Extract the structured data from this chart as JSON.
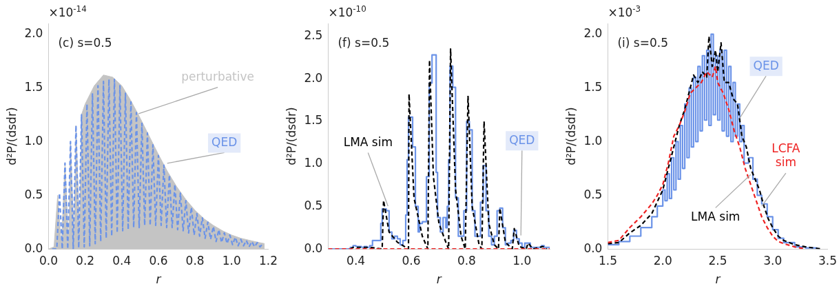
{
  "chart_data": [
    {
      "type": "line",
      "xlabel": "r",
      "ylabel": "d²P/(dsdr)",
      "xlim": [
        0,
        1.2
      ],
      "xticks": [
        {
          "value": 0,
          "label": "0.0"
        },
        {
          "value": 0.2,
          "label": "0.2"
        },
        {
          "value": 0.4,
          "label": "0.4"
        },
        {
          "value": 0.6,
          "label": "0.6"
        },
        {
          "value": 0.8,
          "label": "0.8"
        },
        {
          "value": 1,
          "label": "1.0"
        },
        {
          "value": 1.2,
          "label": "1.2"
        }
      ],
      "ylim": [
        0,
        2.1
      ],
      "yticks": [
        {
          "value": 0,
          "label": "0.0"
        },
        {
          "value": 0.5,
          "label": "0.5"
        },
        {
          "value": 1,
          "label": "1.0"
        },
        {
          "value": 1.5,
          "label": "1.5"
        },
        {
          "value": 2,
          "label": "2.0"
        }
      ],
      "marker": "none",
      "annotations": [
        "(c) s=0.5",
        "×10$^{-14}$"
      ],
      "series": [
        {
          "name": "perturbative",
          "type": "area",
          "color": "#c4c4c4",
          "line_style": "solid",
          "x": [
            0,
            0.03,
            0.05,
            0.07,
            0.09,
            0.11,
            0.12,
            0.14,
            0.15,
            0.17,
            0.18,
            0.2,
            0.25,
            0.3,
            0.35,
            0.4,
            0.45,
            0.5,
            0.55,
            0.6,
            0.65,
            0.7,
            0.75,
            0.8,
            0.85,
            0.9,
            0.95,
            1,
            1.05,
            1.1,
            1.15,
            1.18
          ],
          "values": [
            0,
            0.02,
            0.5,
            0.02,
            0.8,
            0.05,
            1,
            0.1,
            1.15,
            0.15,
            1.25,
            1.35,
            1.52,
            1.62,
            1.6,
            1.52,
            1.38,
            1.22,
            1.05,
            0.88,
            0.72,
            0.58,
            0.46,
            0.36,
            0.28,
            0.22,
            0.17,
            0.13,
            0.1,
            0.08,
            0.06,
            0.05
          ]
        },
        {
          "name": "QED",
          "type": "line",
          "color": "#6b93e8",
          "line_style": "dashed",
          "x": [
            0.02,
            0.045,
            0.06,
            0.075,
            0.09,
            0.105,
            0.12,
            0.135,
            0.15,
            0.165,
            0.18,
            0.195,
            0.21,
            0.225,
            0.24,
            0.255,
            0.27,
            0.285,
            0.3,
            0.315,
            0.33,
            0.345,
            0.36,
            0.375,
            0.39,
            0.405,
            0.42,
            0.435,
            0.45,
            0.465,
            0.48,
            0.495,
            0.51,
            0.525,
            0.54,
            0.555,
            0.57,
            0.585,
            0.6,
            0.615,
            0.63,
            0.645,
            0.66,
            0.675,
            0.69,
            0.705,
            0.72,
            0.735,
            0.75,
            0.765,
            0.78,
            0.795,
            0.81,
            0.825,
            0.84,
            0.855,
            0.87,
            0.885,
            0.9,
            0.915,
            0.93,
            0.945,
            0.96,
            0.975,
            0.99,
            1.005,
            1.02,
            1.035,
            1.05,
            1.065,
            1.08,
            1.095,
            1.11,
            1.125,
            1.14,
            1.155,
            1.17
          ],
          "values": [
            0,
            0,
            0.52,
            0,
            0.8,
            0,
            1,
            0,
            1.15,
            0.01,
            1.25,
            0.02,
            1.35,
            0.03,
            1.45,
            0.05,
            1.52,
            0.07,
            1.56,
            0.1,
            1.58,
            0.12,
            1.58,
            0.15,
            1.52,
            0.17,
            1.45,
            0.18,
            1.37,
            0.2,
            1.27,
            0.2,
            1.17,
            0.22,
            1.08,
            0.22,
            0.97,
            0.22,
            0.87,
            0.22,
            0.78,
            0.2,
            0.69,
            0.2,
            0.6,
            0.18,
            0.52,
            0.17,
            0.45,
            0.15,
            0.39,
            0.13,
            0.33,
            0.12,
            0.29,
            0.1,
            0.25,
            0.09,
            0.21,
            0.07,
            0.18,
            0.06,
            0.15,
            0.05,
            0.13,
            0.04,
            0.11,
            0.03,
            0.09,
            0.03,
            0.08,
            0.02,
            0.07,
            0.02,
            0.06,
            0.02,
            0.05
          ]
        }
      ]
    },
    {
      "type": "line",
      "xlabel": "r",
      "ylabel": "d²P/(dsdr)",
      "xlim": [
        0.3,
        1.1
      ],
      "xticks": [
        {
          "value": 0.4,
          "label": "0.4"
        },
        {
          "value": 0.6,
          "label": "0.6"
        },
        {
          "value": 0.8,
          "label": "0.8"
        },
        {
          "value": 1,
          "label": "1.0"
        }
      ],
      "ylim": [
        0,
        2.65
      ],
      "yticks": [
        {
          "value": 0,
          "label": "0.0"
        },
        {
          "value": 0.5,
          "label": "0.5"
        },
        {
          "value": 1,
          "label": "1.0"
        },
        {
          "value": 1.5,
          "label": "1.5"
        },
        {
          "value": 2,
          "label": "2.0"
        },
        {
          "value": 2.5,
          "label": "2.5"
        }
      ],
      "marker": "none",
      "annotations": [
        "(f) s=0.5",
        "×10$^{-10}$"
      ],
      "series": [
        {
          "name": "QED",
          "type": "step",
          "color": "#6b93e8",
          "line_style": "solid",
          "x": [
            0.3,
            0.38,
            0.39,
            0.4,
            0.42,
            0.43,
            0.44,
            0.45,
            0.46,
            0.47,
            0.49,
            0.495,
            0.51,
            0.52,
            0.53,
            0.54,
            0.55,
            0.56,
            0.57,
            0.58,
            0.585,
            0.59,
            0.605,
            0.615,
            0.625,
            0.63,
            0.64,
            0.655,
            0.665,
            0.675,
            0.69,
            0.695,
            0.705,
            0.715,
            0.725,
            0.73,
            0.735,
            0.74,
            0.75,
            0.76,
            0.77,
            0.78,
            0.79,
            0.8,
            0.81,
            0.82,
            0.83,
            0.84,
            0.85,
            0.86,
            0.87,
            0.88,
            0.89,
            0.9,
            0.91,
            0.92,
            0.93,
            0.94,
            0.95,
            0.96,
            0.97,
            0.98,
            0.99,
            1,
            1.01,
            1.02,
            1.03,
            1.06,
            1.07,
            1.08,
            1.1
          ],
          "values": [
            0,
            0.02,
            0.04,
            0.03,
            0.02,
            0.03,
            0.02,
            0.04,
            0.1,
            0.1,
            0.3,
            0.47,
            0.45,
            0.2,
            0.12,
            0.15,
            0.12,
            0.05,
            0.1,
            0.4,
            1.05,
            1.55,
            1.2,
            0.5,
            0.2,
            0.3,
            0.32,
            0.85,
            1.95,
            2.28,
            0.9,
            0.37,
            0.2,
            0.37,
            0.25,
            0.5,
            1.05,
            2.15,
            1.9,
            0.6,
            0.15,
            0.15,
            0.45,
            1.5,
            1.4,
            0.45,
            0.15,
            0.15,
            0.55,
            0.98,
            0.45,
            0.15,
            0.05,
            0.15,
            0.45,
            0.48,
            0.25,
            0.05,
            0.07,
            0.1,
            0.22,
            0.12,
            0.07,
            0.02,
            0.07,
            0.07,
            0.02,
            0.02,
            0.04,
            0.02,
            0
          ]
        },
        {
          "name": "LMA sim",
          "type": "line",
          "color": "#000000",
          "line_style": "dashed",
          "x": [
            0.38,
            0.39,
            0.45,
            0.495,
            0.5,
            0.52,
            0.55,
            0.59,
            0.592,
            0.61,
            0.64,
            0.66,
            0.666,
            0.68,
            0.7,
            0.725,
            0.735,
            0.742,
            0.76,
            0.78,
            0.795,
            0.805,
            0.82,
            0.845,
            0.855,
            0.863,
            0.88,
            0.9,
            0.915,
            0.92,
            0.94,
            0.965,
            0.972,
            0.99,
            1.015,
            1.022,
            1.04,
            1.075,
            1.09
          ],
          "values": [
            0,
            0.02,
            0.02,
            0,
            0.57,
            0.2,
            0.08,
            0,
            1.82,
            0.6,
            0.15,
            0,
            2.22,
            0.85,
            0.3,
            0.08,
            0,
            2.35,
            0.7,
            0.15,
            0,
            1.8,
            0.5,
            0.05,
            0,
            1.5,
            0.3,
            0.05,
            0,
            0.48,
            0.08,
            0,
            0.24,
            0.03,
            0,
            0.07,
            0,
            0.03,
            0
          ]
        },
        {
          "type": "line",
          "color": "#ee2222",
          "line_style": "dashed",
          "x": [
            0.3,
            1.1
          ],
          "values": [
            0,
            0
          ]
        }
      ]
    },
    {
      "type": "line",
      "xlabel": "r",
      "ylabel": "d²P/(dsdr)",
      "xlim": [
        1.5,
        3.5
      ],
      "xticks": [
        {
          "value": 1.5,
          "label": "1.5"
        },
        {
          "value": 2,
          "label": "2.0"
        },
        {
          "value": 2.5,
          "label": "2.5"
        },
        {
          "value": 3,
          "label": "3.0"
        },
        {
          "value": 3.5,
          "label": "3.5"
        }
      ],
      "ylim": [
        0,
        2.1
      ],
      "yticks": [
        {
          "value": 0,
          "label": "0.0"
        },
        {
          "value": 0.5,
          "label": "0.5"
        },
        {
          "value": 1,
          "label": "1.0"
        },
        {
          "value": 1.5,
          "label": "1.5"
        },
        {
          "value": 2,
          "label": "2.0"
        }
      ],
      "marker": "none",
      "annotations": [
        "(i) s=0.5",
        "×10$^{-3}$"
      ],
      "series": [
        {
          "name": "QED",
          "type": "step",
          "color": "#6b93e8",
          "line_style": "solid",
          "x": [
            1.5,
            1.6,
            1.7,
            1.8,
            1.9,
            1.95,
            2,
            2.02,
            2.04,
            2.06,
            2.08,
            2.1,
            2.12,
            2.14,
            2.16,
            2.18,
            2.2,
            2.22,
            2.24,
            2.26,
            2.28,
            2.3,
            2.32,
            2.34,
            2.36,
            2.38,
            2.4,
            2.42,
            2.44,
            2.46,
            2.48,
            2.5,
            2.52,
            2.54,
            2.56,
            2.58,
            2.6,
            2.62,
            2.64,
            2.66,
            2.68,
            2.7,
            2.72,
            2.74,
            2.78,
            2.82,
            2.86,
            2.9,
            2.95,
            3,
            3.05,
            3.1,
            3.2,
            3.3,
            3.4
          ],
          "values": [
            0.04,
            0.07,
            0.12,
            0.2,
            0.3,
            0.4,
            0.55,
            0.45,
            0.7,
            0.47,
            0.85,
            0.55,
            1,
            0.65,
            1.15,
            0.75,
            1.35,
            0.85,
            1.5,
            0.95,
            1.6,
            1,
            1.7,
            1.1,
            1.8,
            1.2,
            1.85,
            1.15,
            2,
            1.25,
            1.8,
            1.2,
            1.85,
            1.1,
            1.85,
            1.05,
            1.7,
            1,
            1.55,
            1.05,
            1.35,
            1,
            1.15,
            0.8,
            0.85,
            0.65,
            0.5,
            0.42,
            0.3,
            0.18,
            0.1,
            0.06,
            0.02,
            0.01,
            0
          ]
        },
        {
          "name": "LMA sim",
          "type": "line",
          "color": "#000000",
          "line_style": "dashed",
          "x": [
            1.5,
            1.6,
            1.7,
            1.8,
            1.9,
            2,
            2.05,
            2.1,
            2.15,
            2.2,
            2.25,
            2.28,
            2.32,
            2.36,
            2.4,
            2.42,
            2.45,
            2.48,
            2.5,
            2.53,
            2.56,
            2.6,
            2.64,
            2.68,
            2.72,
            2.76,
            2.8,
            2.84,
            2.88,
            2.92,
            2.96,
            3,
            3.05,
            3.1,
            3.2,
            3.3,
            3.45
          ],
          "values": [
            0.05,
            0.06,
            0.15,
            0.22,
            0.33,
            0.55,
            0.75,
            0.95,
            1.15,
            1.3,
            1.5,
            1.62,
            1.55,
            1.65,
            1.6,
            1.98,
            1.7,
            1.85,
            1.65,
            1.92,
            1.55,
            1.55,
            1.4,
            1.35,
            1.05,
            0.95,
            0.75,
            0.65,
            0.55,
            0.4,
            0.28,
            0.2,
            0.12,
            0.08,
            0.04,
            0.02,
            0
          ]
        },
        {
          "name": "LCFA sim",
          "type": "line",
          "color": "#ee2222",
          "line_style": "dashed",
          "x": [
            1.5,
            1.6,
            1.7,
            1.8,
            1.9,
            1.95,
            2,
            2.05,
            2.1,
            2.15,
            2.2,
            2.25,
            2.3,
            2.35,
            2.4,
            2.45,
            2.48,
            2.5,
            2.55,
            2.6,
            2.65,
            2.7,
            2.75,
            2.8,
            2.85,
            2.9,
            2.95,
            3,
            3.05,
            3.1,
            3.2,
            3.3
          ],
          "values": [
            0.06,
            0.08,
            0.2,
            0.3,
            0.42,
            0.5,
            0.6,
            0.8,
            1.05,
            1.15,
            1.28,
            1.45,
            1.5,
            1.55,
            1.65,
            1.6,
            1.7,
            1.55,
            1.45,
            1.3,
            1.1,
            0.95,
            0.75,
            0.6,
            0.45,
            0.3,
            0.2,
            0.12,
            0.07,
            0.05,
            0.02,
            0
          ]
        }
      ]
    }
  ]
}
